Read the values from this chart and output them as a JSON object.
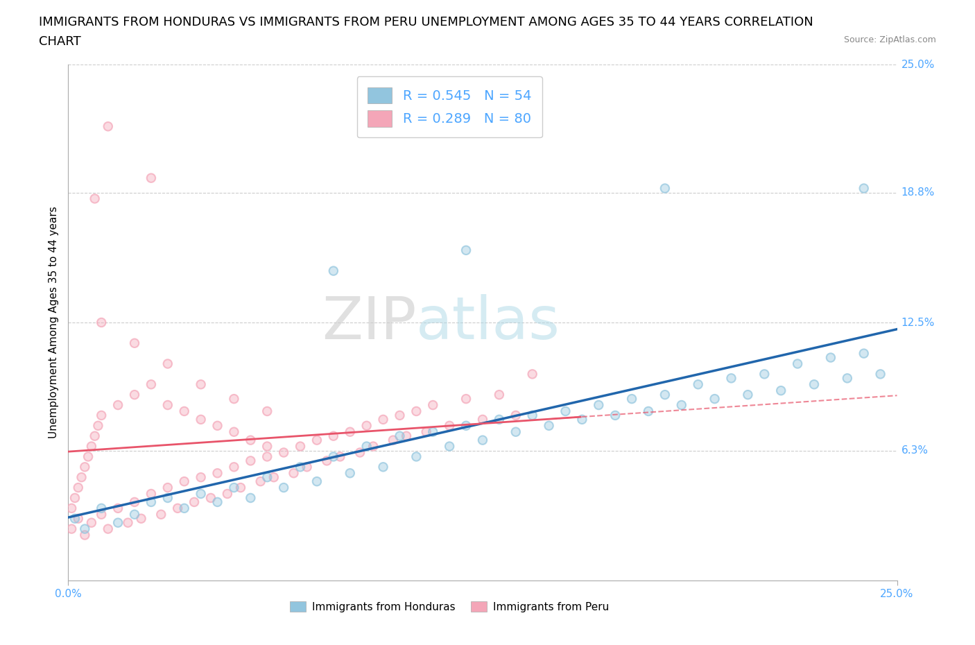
{
  "title_line1": "IMMIGRANTS FROM HONDURAS VS IMMIGRANTS FROM PERU UNEMPLOYMENT AMONG AGES 35 TO 44 YEARS CORRELATION",
  "title_line2": "CHART",
  "source": "Source: ZipAtlas.com",
  "ylabel": "Unemployment Among Ages 35 to 44 years",
  "xlim": [
    0.0,
    0.25
  ],
  "ylim": [
    0.0,
    0.25
  ],
  "ytick_labels": [
    "25.0%",
    "18.8%",
    "12.5%",
    "6.3%"
  ],
  "ytick_values": [
    0.25,
    0.188,
    0.125,
    0.063
  ],
  "grid_color": "#cccccc",
  "honduras_color": "#92c5de",
  "peru_color": "#f4a6b8",
  "trend_honduras_color": "#2166ac",
  "trend_peru_color": "#e8546a",
  "R_honduras": 0.545,
  "N_honduras": 54,
  "R_peru": 0.289,
  "N_peru": 80,
  "legend_label_honduras": "Immigrants from Honduras",
  "legend_label_peru": "Immigrants from Peru",
  "watermark_part1": "ZIP",
  "watermark_part2": "atlas",
  "title_fontsize": 13,
  "axis_label_fontsize": 11,
  "tick_fontsize": 11,
  "tick_color": "#4da6ff",
  "honduras_x": [
    0.002,
    0.005,
    0.01,
    0.015,
    0.02,
    0.025,
    0.03,
    0.035,
    0.04,
    0.045,
    0.05,
    0.055,
    0.06,
    0.065,
    0.07,
    0.075,
    0.08,
    0.085,
    0.09,
    0.095,
    0.1,
    0.105,
    0.11,
    0.115,
    0.12,
    0.125,
    0.13,
    0.135,
    0.14,
    0.145,
    0.15,
    0.155,
    0.16,
    0.165,
    0.17,
    0.175,
    0.18,
    0.185,
    0.19,
    0.195,
    0.2,
    0.205,
    0.21,
    0.215,
    0.22,
    0.225,
    0.23,
    0.235,
    0.24,
    0.245,
    0.08,
    0.12,
    0.18,
    0.24
  ],
  "honduras_y": [
    0.03,
    0.025,
    0.035,
    0.028,
    0.032,
    0.038,
    0.04,
    0.035,
    0.042,
    0.038,
    0.045,
    0.04,
    0.05,
    0.045,
    0.055,
    0.048,
    0.06,
    0.052,
    0.065,
    0.055,
    0.07,
    0.06,
    0.072,
    0.065,
    0.075,
    0.068,
    0.078,
    0.072,
    0.08,
    0.075,
    0.082,
    0.078,
    0.085,
    0.08,
    0.088,
    0.082,
    0.09,
    0.085,
    0.095,
    0.088,
    0.098,
    0.09,
    0.1,
    0.092,
    0.105,
    0.095,
    0.108,
    0.098,
    0.11,
    0.1,
    0.15,
    0.16,
    0.19,
    0.19
  ],
  "peru_x": [
    0.001,
    0.003,
    0.005,
    0.007,
    0.01,
    0.012,
    0.015,
    0.018,
    0.02,
    0.022,
    0.025,
    0.028,
    0.03,
    0.033,
    0.035,
    0.038,
    0.04,
    0.043,
    0.045,
    0.048,
    0.05,
    0.052,
    0.055,
    0.058,
    0.06,
    0.062,
    0.065,
    0.068,
    0.07,
    0.072,
    0.075,
    0.078,
    0.08,
    0.082,
    0.085,
    0.088,
    0.09,
    0.092,
    0.095,
    0.098,
    0.1,
    0.102,
    0.105,
    0.108,
    0.11,
    0.115,
    0.12,
    0.125,
    0.13,
    0.135,
    0.001,
    0.002,
    0.003,
    0.004,
    0.005,
    0.006,
    0.007,
    0.008,
    0.009,
    0.01,
    0.015,
    0.02,
    0.025,
    0.03,
    0.035,
    0.04,
    0.045,
    0.05,
    0.055,
    0.06,
    0.01,
    0.02,
    0.03,
    0.04,
    0.05,
    0.06,
    0.14,
    0.012,
    0.025,
    0.008
  ],
  "peru_y": [
    0.025,
    0.03,
    0.022,
    0.028,
    0.032,
    0.025,
    0.035,
    0.028,
    0.038,
    0.03,
    0.042,
    0.032,
    0.045,
    0.035,
    0.048,
    0.038,
    0.05,
    0.04,
    0.052,
    0.042,
    0.055,
    0.045,
    0.058,
    0.048,
    0.06,
    0.05,
    0.062,
    0.052,
    0.065,
    0.055,
    0.068,
    0.058,
    0.07,
    0.06,
    0.072,
    0.062,
    0.075,
    0.065,
    0.078,
    0.068,
    0.08,
    0.07,
    0.082,
    0.072,
    0.085,
    0.075,
    0.088,
    0.078,
    0.09,
    0.08,
    0.035,
    0.04,
    0.045,
    0.05,
    0.055,
    0.06,
    0.065,
    0.07,
    0.075,
    0.08,
    0.085,
    0.09,
    0.095,
    0.085,
    0.082,
    0.078,
    0.075,
    0.072,
    0.068,
    0.065,
    0.125,
    0.115,
    0.105,
    0.095,
    0.088,
    0.082,
    0.1,
    0.22,
    0.195,
    0.185
  ]
}
